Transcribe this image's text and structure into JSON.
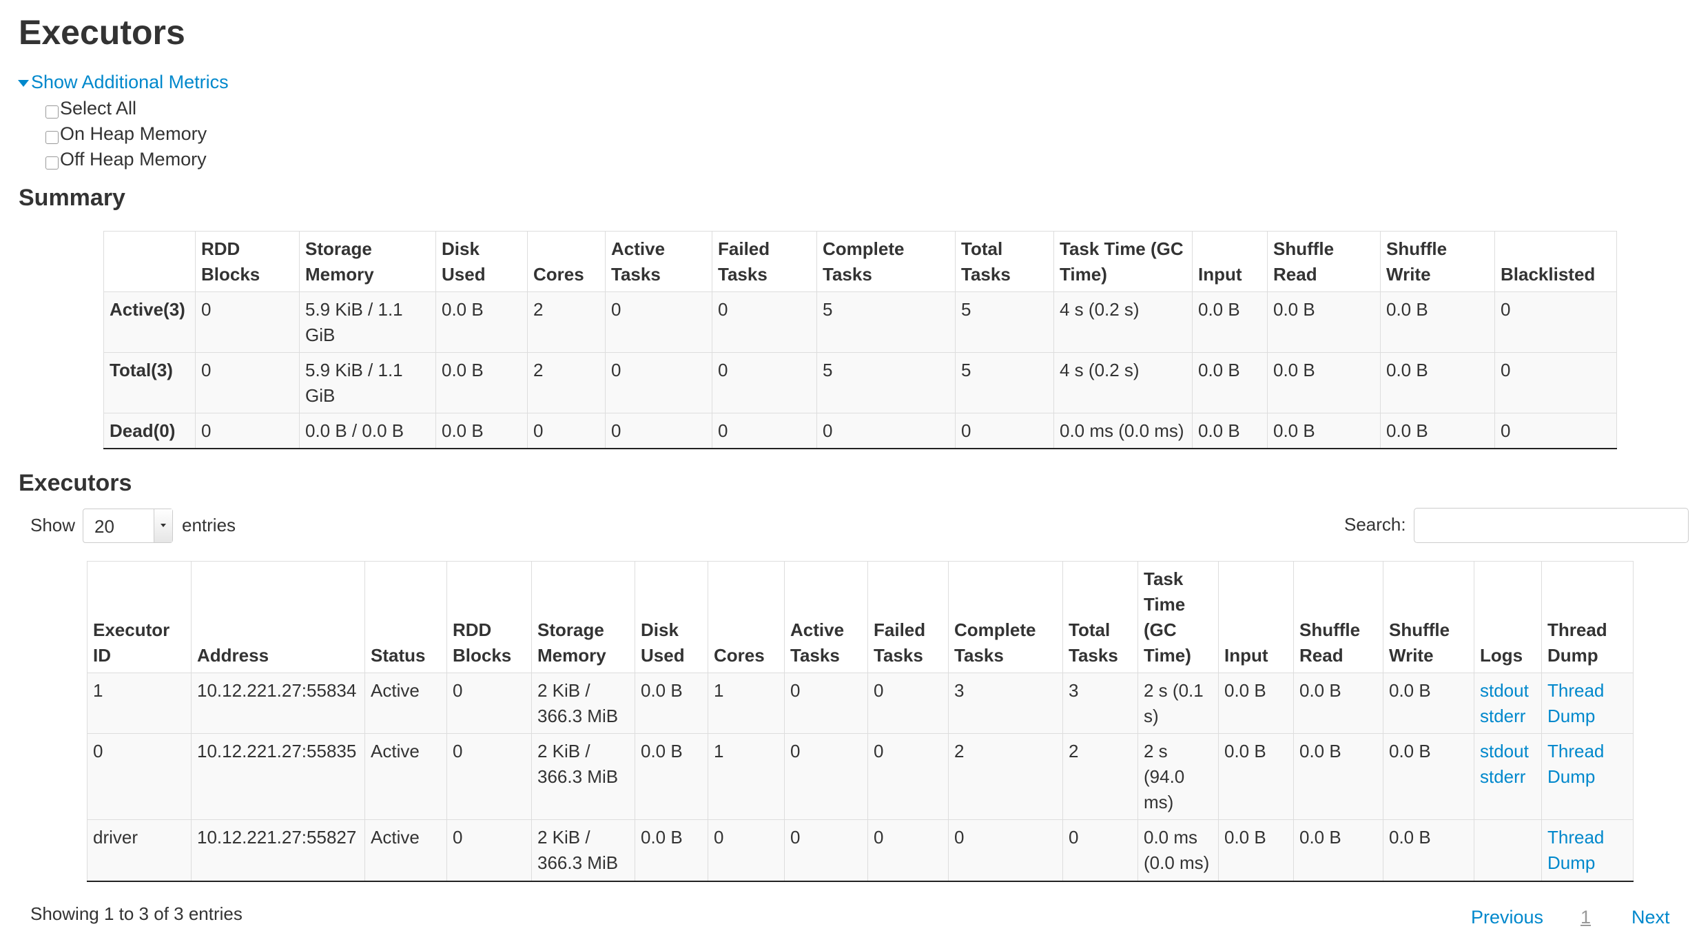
{
  "page_title": "Executors",
  "metrics": {
    "toggle_label": "Show Additional Metrics",
    "options": [
      {
        "label": "Select All",
        "checked": false
      },
      {
        "label": "On Heap Memory",
        "checked": false
      },
      {
        "label": "Off Heap Memory",
        "checked": false
      }
    ]
  },
  "summary": {
    "title": "Summary",
    "headers": [
      "",
      "RDD Blocks",
      "Storage Memory",
      "Disk Used",
      "Cores",
      "Active Tasks",
      "Failed Tasks",
      "Complete Tasks",
      "Total Tasks",
      "Task Time (GC Time)",
      "Input",
      "Shuffle Read",
      "Shuffle Write",
      "Blacklisted"
    ],
    "sorted_column": "Cores",
    "rows": [
      [
        "Active(3)",
        "0",
        "5.9 KiB / 1.1 GiB",
        "0.0 B",
        "2",
        "0",
        "0",
        "5",
        "5",
        "4 s (0.2 s)",
        "0.0 B",
        "0.0 B",
        "0.0 B",
        "0"
      ],
      [
        "Total(3)",
        "0",
        "5.9 KiB / 1.1 GiB",
        "0.0 B",
        "2",
        "0",
        "0",
        "5",
        "5",
        "4 s (0.2 s)",
        "0.0 B",
        "0.0 B",
        "0.0 B",
        "0"
      ],
      [
        "Dead(0)",
        "0",
        "0.0 B / 0.0 B",
        "0.0 B",
        "0",
        "0",
        "0",
        "0",
        "0",
        "0.0 ms (0.0 ms)",
        "0.0 B",
        "0.0 B",
        "0.0 B",
        "0"
      ]
    ]
  },
  "executors": {
    "title": "Executors",
    "show_label": "Show",
    "page_size": "20",
    "entries_label": "entries",
    "search_label": "Search:",
    "search_value": "",
    "headers": [
      "Executor ID",
      "Address",
      "Status",
      "RDD Blocks",
      "Storage Memory",
      "Disk Used",
      "Cores",
      "Active Tasks",
      "Failed Tasks",
      "Complete Tasks",
      "Total Tasks",
      "Task Time (GC Time)",
      "Input",
      "Shuffle Read",
      "Shuffle Write",
      "Logs",
      "Thread Dump"
    ],
    "sorted_column": "Executor ID",
    "rows": [
      {
        "cells": [
          "1",
          "10.12.221.27:55834",
          "Active",
          "0",
          "2 KiB / 366.3 MiB",
          "0.0 B",
          "1",
          "0",
          "0",
          "3",
          "3",
          "2 s (0.1 s)",
          "0.0 B",
          "0.0 B",
          "0.0 B"
        ],
        "logs": [
          "stdout",
          "stderr"
        ],
        "thread_dump": "Thread Dump"
      },
      {
        "cells": [
          "0",
          "10.12.221.27:55835",
          "Active",
          "0",
          "2 KiB / 366.3 MiB",
          "0.0 B",
          "1",
          "0",
          "0",
          "2",
          "2",
          "2 s (94.0 ms)",
          "0.0 B",
          "0.0 B",
          "0.0 B"
        ],
        "logs": [
          "stdout",
          "stderr"
        ],
        "thread_dump": "Thread Dump"
      },
      {
        "cells": [
          "driver",
          "10.12.221.27:55827",
          "Active",
          "0",
          "2 KiB / 366.3 MiB",
          "0.0 B",
          "0",
          "0",
          "0",
          "0",
          "0",
          "0.0 ms (0.0 ms)",
          "0.0 B",
          "0.0 B",
          "0.0 B"
        ],
        "logs": [],
        "thread_dump": "Thread Dump"
      }
    ],
    "info": "Showing 1 to 3 of 3 entries",
    "pagination": {
      "previous": "Previous",
      "current": "1",
      "next": "Next"
    }
  },
  "colors": {
    "link": "#0088cc",
    "sort_arrow": "#7e8ee0",
    "stripe": "#f9f9f9",
    "border": "#dddddd"
  }
}
